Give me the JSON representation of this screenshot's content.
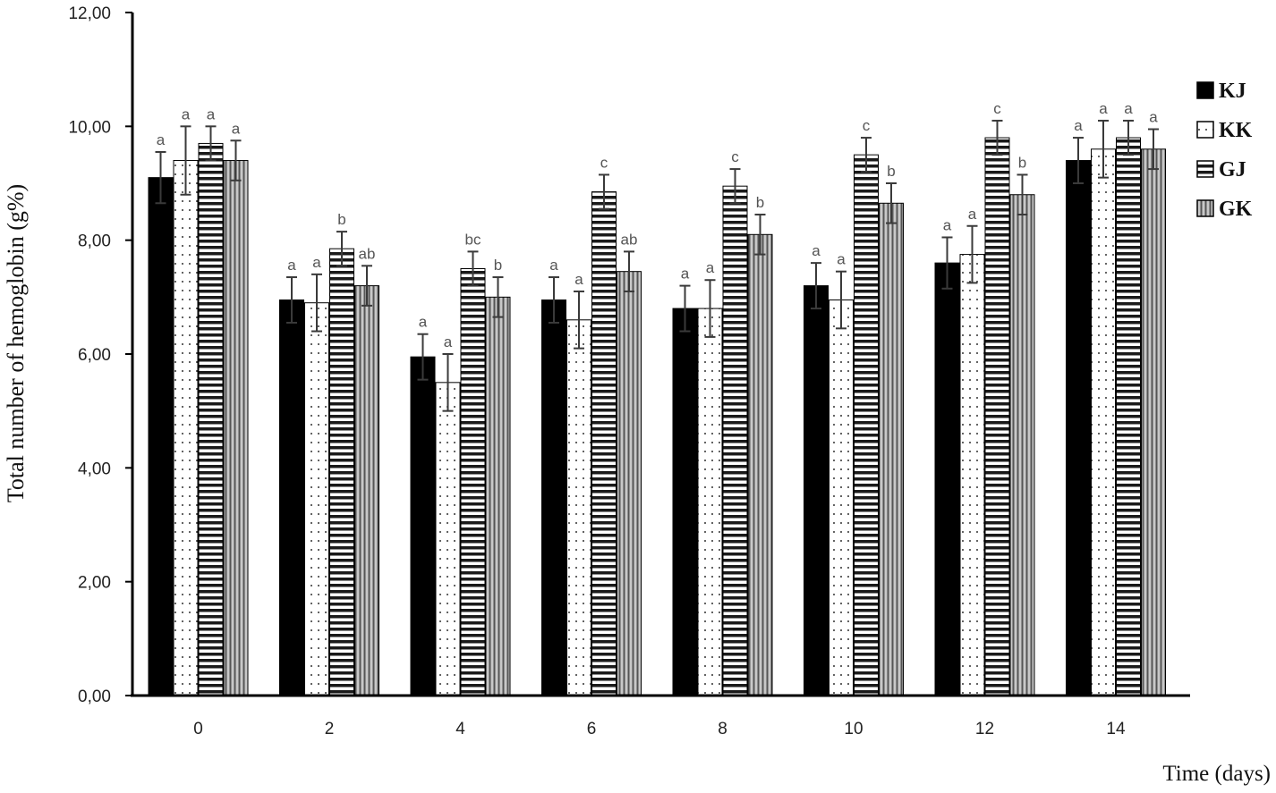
{
  "chart_data": {
    "type": "bar",
    "title": "",
    "xlabel": "Time (days)",
    "ylabel": "Total number of hemoglobin (g%)",
    "categories": [
      "0",
      "2",
      "4",
      "6",
      "8",
      "10",
      "12",
      "14"
    ],
    "ylim": [
      0,
      12
    ],
    "yticks": [
      "0,00",
      "2,00",
      "4,00",
      "6,00",
      "8,00",
      "10,00",
      "12,00"
    ],
    "grid": false,
    "legend_position": "right",
    "series": [
      {
        "name": "KJ",
        "pattern": "solid-black",
        "values": [
          9.1,
          6.95,
          5.95,
          6.95,
          6.8,
          7.2,
          7.6,
          9.4
        ],
        "errors": [
          0.45,
          0.4,
          0.4,
          0.4,
          0.4,
          0.4,
          0.45,
          0.4
        ],
        "labels": [
          "a",
          "a",
          "a",
          "a",
          "a",
          "a",
          "a",
          "a"
        ]
      },
      {
        "name": "KK",
        "pattern": "dots",
        "values": [
          9.4,
          6.9,
          5.5,
          6.6,
          6.8,
          6.95,
          7.75,
          9.6
        ],
        "errors": [
          0.6,
          0.5,
          0.5,
          0.5,
          0.5,
          0.5,
          0.5,
          0.5
        ],
        "labels": [
          "a",
          "a",
          "a",
          "a",
          "a",
          "a",
          "a",
          "a"
        ]
      },
      {
        "name": "GJ",
        "pattern": "horizontal-lines",
        "values": [
          9.7,
          7.85,
          7.5,
          8.85,
          8.95,
          9.5,
          9.8,
          9.8
        ],
        "errors": [
          0.3,
          0.3,
          0.3,
          0.3,
          0.3,
          0.3,
          0.3,
          0.3
        ],
        "labels": [
          "a",
          "b",
          "bc",
          "c",
          "c",
          "c",
          "c",
          "a"
        ]
      },
      {
        "name": "GK",
        "pattern": "vertical-lines",
        "values": [
          9.4,
          7.2,
          7.0,
          7.45,
          8.1,
          8.65,
          8.8,
          9.6
        ],
        "errors": [
          0.35,
          0.35,
          0.35,
          0.35,
          0.35,
          0.35,
          0.35,
          0.35
        ],
        "labels": [
          "a",
          "ab",
          "b",
          "ab",
          "b",
          "b",
          "b",
          "a"
        ]
      }
    ]
  }
}
